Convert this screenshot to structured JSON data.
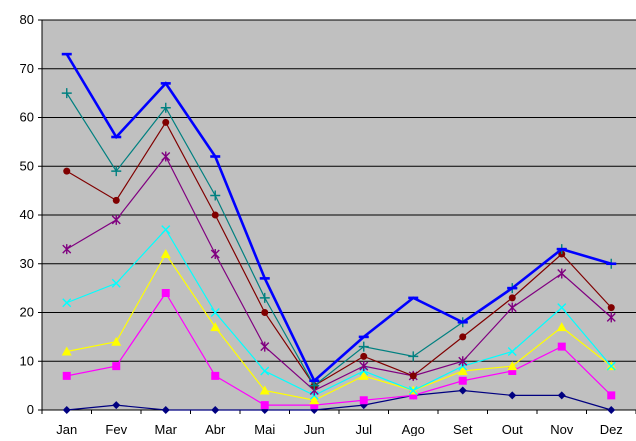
{
  "chart_data": {
    "type": "line",
    "categories": [
      "Jan",
      "Fev",
      "Mar",
      "Abr",
      "Mai",
      "Jun",
      "Jul",
      "Ago",
      "Set",
      "Out",
      "Nov",
      "Dez"
    ],
    "ylim": [
      0,
      80
    ],
    "yticks": [
      0,
      10,
      20,
      30,
      40,
      50,
      60,
      70,
      80
    ],
    "grid": true,
    "plot_background": "#c0c0c0",
    "series": [
      {
        "color": "#000080",
        "marker": "diamond",
        "width": 1.2,
        "values": [
          0,
          1,
          0,
          0,
          0,
          0,
          1,
          3,
          4,
          3,
          3,
          0
        ]
      },
      {
        "color": "#ff00ff",
        "marker": "square",
        "width": 1.2,
        "values": [
          7,
          9,
          24,
          7,
          1,
          1,
          2,
          3,
          6,
          8,
          13,
          3
        ]
      },
      {
        "color": "#ffff00",
        "marker": "triangle",
        "width": 1.2,
        "values": [
          12,
          14,
          32,
          17,
          4,
          2,
          7,
          4,
          8,
          9,
          17,
          9
        ]
      },
      {
        "color": "#00ffff",
        "marker": "x",
        "width": 1.2,
        "values": [
          22,
          26,
          37,
          20,
          8,
          3,
          8,
          4,
          9,
          12,
          21,
          9
        ]
      },
      {
        "color": "#800080",
        "marker": "star",
        "width": 1.2,
        "values": [
          33,
          39,
          52,
          32,
          13,
          4,
          9,
          7,
          10,
          21,
          28,
          19
        ]
      },
      {
        "color": "#800000",
        "marker": "circle",
        "width": 1.2,
        "values": [
          49,
          43,
          59,
          40,
          20,
          5,
          11,
          7,
          15,
          23,
          32,
          21
        ]
      },
      {
        "color": "#008080",
        "marker": "plus",
        "width": 1.2,
        "values": [
          65,
          49,
          62,
          44,
          23,
          5,
          13,
          11,
          18,
          25,
          33,
          30
        ]
      },
      {
        "color": "#0000ff",
        "marker": "dash",
        "width": 2.6,
        "values": [
          73,
          56,
          67,
          52,
          27,
          6,
          15,
          23,
          18,
          25,
          33,
          30
        ]
      }
    ]
  }
}
